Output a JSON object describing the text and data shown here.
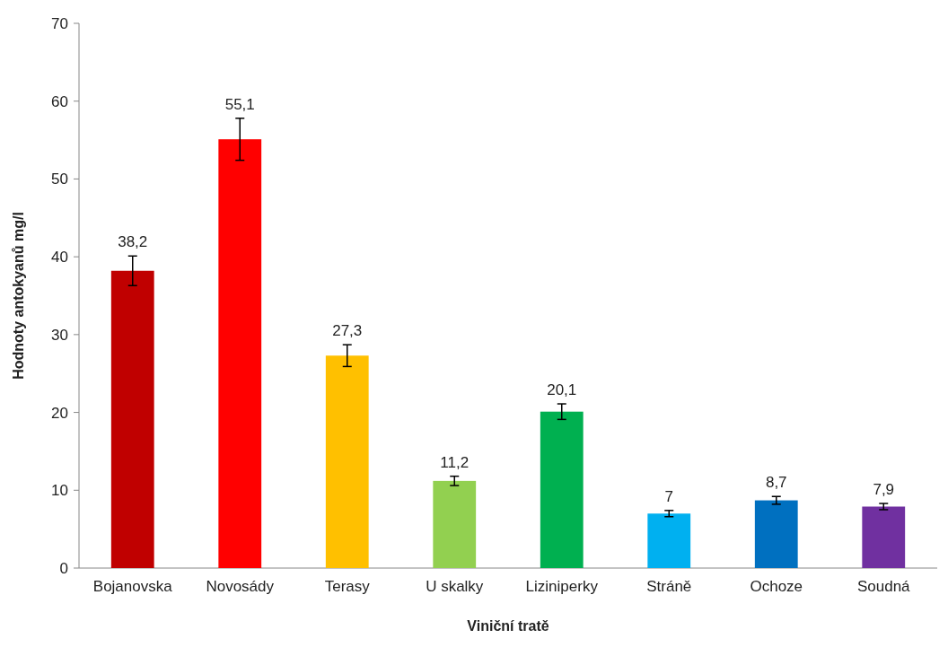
{
  "chart_data": {
    "type": "bar",
    "xlabel": "Viniční tratě",
    "ylabel": "Hodnoty antokyanů mg/l",
    "categories": [
      "Bojanovska",
      "Novosády",
      "Terasy",
      "U skalky",
      "Liziniperky",
      "Stráně",
      "Ochoze",
      "Soudná"
    ],
    "values": [
      38.2,
      55.1,
      27.3,
      11.2,
      20.1,
      7,
      8.7,
      7.9
    ],
    "colors": [
      "#c00000",
      "#ff0000",
      "#ffc000",
      "#92d050",
      "#00b050",
      "#00b0f0",
      "#0070c0",
      "#7030a0"
    ],
    "errors": [
      1.9,
      2.7,
      1.4,
      0.6,
      1.0,
      0.4,
      0.5,
      0.4
    ],
    "value_labels": [
      "38,2",
      "55,1",
      "27,3",
      "11,2",
      "20,1",
      "7",
      "8,7",
      "7,9"
    ],
    "ylim": [
      0,
      70
    ],
    "yticks": [
      0,
      10,
      20,
      30,
      40,
      50,
      60,
      70
    ],
    "grid": false
  }
}
